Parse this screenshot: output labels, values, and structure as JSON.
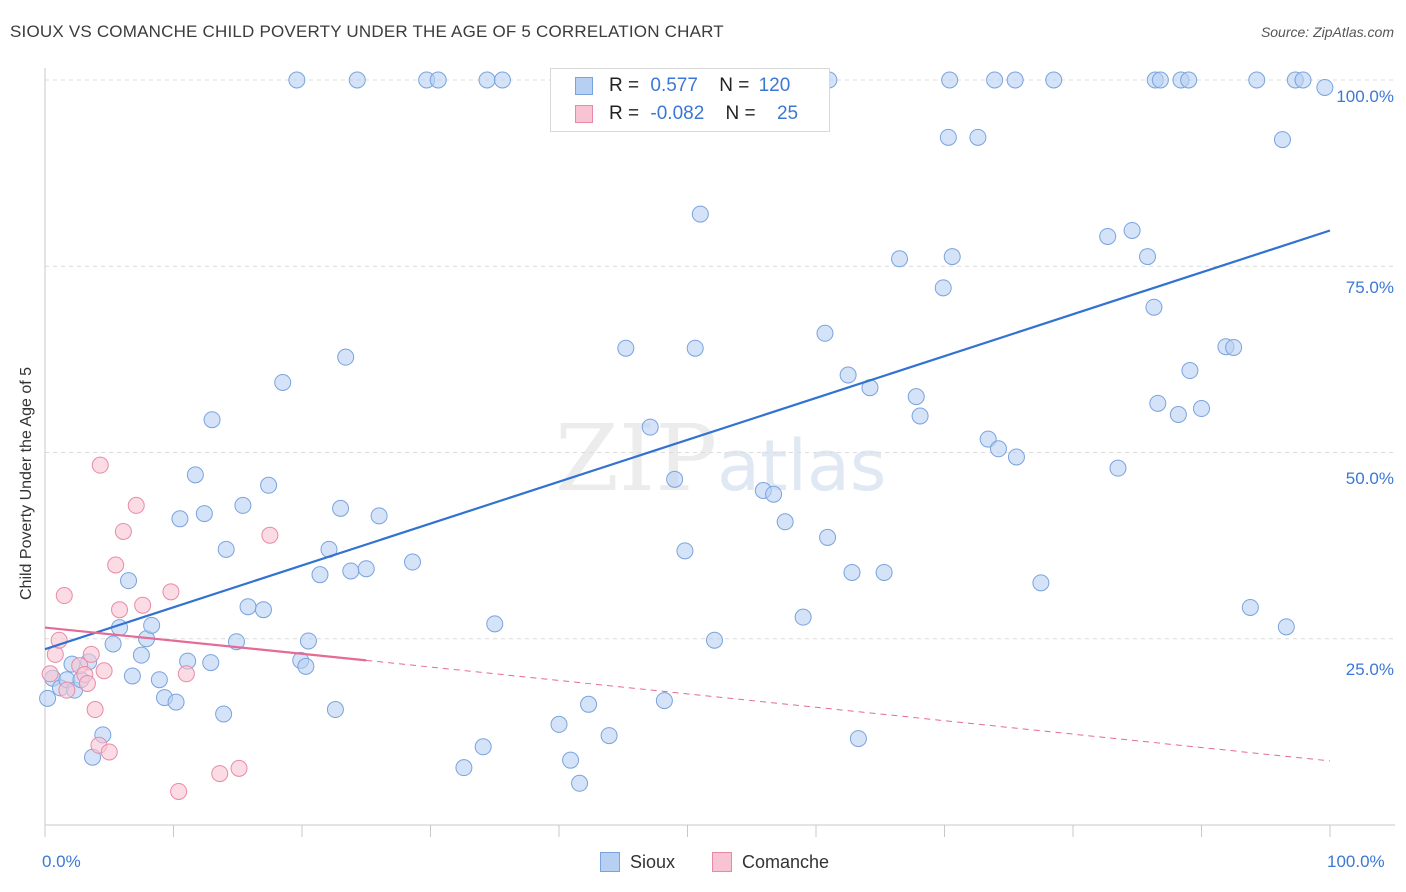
{
  "title": "SIOUX VS COMANCHE CHILD POVERTY UNDER THE AGE OF 5 CORRELATION CHART",
  "source": "Source: ZipAtlas.com",
  "watermark": {
    "zip": "ZIP",
    "atlas": "atlas"
  },
  "legend": {
    "rows": [
      {
        "r_label": "R =",
        "r_value": "0.577",
        "n_label": "N =",
        "n_value": "120",
        "color": "#b7d0f2",
        "border": "#7aa3de"
      },
      {
        "r_label": "R =",
        "r_value": "-0.082",
        "n_label": "N =",
        "n_value": "25",
        "color": "#f8c4d3",
        "border": "#e88aa6"
      }
    ]
  },
  "bottom_legend": [
    {
      "label": "Sioux",
      "color": "#b7d0f2",
      "border": "#7aa3de"
    },
    {
      "label": "Comanche",
      "color": "#f8c4d3",
      "border": "#e88aa6"
    }
  ],
  "chart_data": {
    "type": "scatter",
    "title": "SIOUX VS COMANCHE CHILD POVERTY UNDER THE AGE OF 5 CORRELATION CHART",
    "xlabel": "",
    "ylabel": "Child Poverty Under the Age of 5",
    "xlim": [
      0,
      100
    ],
    "ylim": [
      0,
      100
    ],
    "x_tick_labels": [
      "0.0%",
      "100.0%"
    ],
    "y_tick_labels": [
      {
        "value": 25,
        "label": "25.0%"
      },
      {
        "value": 50,
        "label": "50.0%"
      },
      {
        "value": 75,
        "label": "75.0%"
      },
      {
        "value": 100,
        "label": "100.0%"
      }
    ],
    "grid": true,
    "series": [
      {
        "name": "Sioux",
        "color": "#7aa3de",
        "fill": "#b7d0f2",
        "trend": {
          "x": [
            0,
            100
          ],
          "y": [
            23.6,
            79.8
          ],
          "style": "solid"
        },
        "points": [
          [
            0.2,
            17.0
          ],
          [
            0.6,
            19.7
          ],
          [
            1.2,
            18.4
          ],
          [
            1.7,
            19.5
          ],
          [
            2.1,
            21.6
          ],
          [
            2.3,
            18.1
          ],
          [
            2.8,
            19.5
          ],
          [
            3.4,
            21.9
          ],
          [
            3.7,
            9.1
          ],
          [
            4.5,
            12.1
          ],
          [
            5.3,
            24.3
          ],
          [
            5.8,
            26.5
          ],
          [
            6.5,
            32.8
          ],
          [
            6.8,
            20.0
          ],
          [
            7.5,
            22.8
          ],
          [
            7.9,
            25.0
          ],
          [
            8.3,
            26.8
          ],
          [
            8.9,
            19.5
          ],
          [
            9.3,
            17.1
          ],
          [
            10.2,
            16.5
          ],
          [
            10.5,
            41.1
          ],
          [
            11.1,
            22.0
          ],
          [
            11.7,
            47.0
          ],
          [
            12.4,
            41.8
          ],
          [
            12.9,
            21.8
          ],
          [
            13.0,
            54.4
          ],
          [
            13.9,
            14.9
          ],
          [
            14.1,
            37.0
          ],
          [
            14.9,
            24.6
          ],
          [
            15.4,
            42.9
          ],
          [
            15.8,
            29.3
          ],
          [
            17.0,
            28.9
          ],
          [
            17.4,
            45.6
          ],
          [
            18.5,
            59.4
          ],
          [
            19.9,
            22.1
          ],
          [
            20.3,
            21.3
          ],
          [
            20.5,
            24.7
          ],
          [
            21.4,
            33.6
          ],
          [
            22.1,
            37.0
          ],
          [
            22.6,
            15.5
          ],
          [
            23.0,
            42.5
          ],
          [
            23.4,
            62.8
          ],
          [
            23.8,
            34.1
          ],
          [
            25.0,
            34.4
          ],
          [
            26.0,
            41.5
          ],
          [
            28.6,
            35.3
          ],
          [
            32.6,
            7.7
          ],
          [
            34.1,
            10.5
          ],
          [
            35.0,
            27.0
          ],
          [
            40.0,
            13.5
          ],
          [
            40.9,
            8.7
          ],
          [
            41.6,
            5.6
          ],
          [
            42.3,
            16.2
          ],
          [
            43.9,
            12.0
          ],
          [
            45.2,
            64.0
          ],
          [
            47.1,
            53.4
          ],
          [
            48.2,
            16.7
          ],
          [
            49.0,
            46.4
          ],
          [
            49.8,
            36.8
          ],
          [
            50.6,
            64.0
          ],
          [
            51.0,
            82.0
          ],
          [
            52.1,
            24.8
          ],
          [
            55.9,
            44.9
          ],
          [
            56.7,
            44.4
          ],
          [
            57.6,
            40.7
          ],
          [
            59.0,
            27.9
          ],
          [
            60.7,
            66.0
          ],
          [
            60.9,
            38.6
          ],
          [
            62.5,
            60.4
          ],
          [
            62.8,
            33.9
          ],
          [
            63.3,
            11.6
          ],
          [
            64.2,
            58.7
          ],
          [
            65.3,
            33.9
          ],
          [
            66.5,
            76.0
          ],
          [
            67.8,
            57.5
          ],
          [
            68.1,
            54.9
          ],
          [
            69.9,
            72.1
          ],
          [
            70.3,
            92.3
          ],
          [
            70.6,
            76.3
          ],
          [
            72.6,
            92.3
          ],
          [
            73.4,
            51.8
          ],
          [
            74.2,
            50.5
          ],
          [
            75.6,
            49.4
          ],
          [
            77.5,
            32.5
          ],
          [
            83.5,
            47.9
          ],
          [
            82.7,
            79.0
          ],
          [
            84.6,
            79.8
          ],
          [
            85.8,
            76.3
          ],
          [
            86.3,
            69.5
          ],
          [
            86.6,
            56.6
          ],
          [
            88.2,
            55.1
          ],
          [
            89.1,
            61.0
          ],
          [
            90.0,
            55.9
          ],
          [
            91.9,
            64.2
          ],
          [
            92.5,
            64.1
          ],
          [
            93.8,
            29.2
          ],
          [
            96.3,
            92.0
          ],
          [
            96.6,
            26.6
          ],
          [
            97.3,
            100.0
          ],
          [
            97.9,
            100.0
          ],
          [
            99.6,
            99.0
          ],
          [
            86.4,
            100.0
          ],
          [
            86.8,
            100.0
          ],
          [
            88.4,
            100.0
          ],
          [
            89.0,
            100.0
          ],
          [
            78.5,
            100.0
          ],
          [
            73.9,
            100.0
          ],
          [
            70.4,
            100.0
          ],
          [
            75.5,
            100.0
          ],
          [
            94.3,
            100.0
          ],
          [
            61.0,
            100.0
          ],
          [
            57.9,
            100.0
          ],
          [
            19.6,
            100.0
          ],
          [
            24.3,
            100.0
          ],
          [
            29.7,
            100.0
          ],
          [
            30.6,
            100.0
          ],
          [
            34.4,
            100.0
          ],
          [
            35.6,
            100.0
          ],
          [
            44.8,
            100.0
          ],
          [
            55.4,
            100.0
          ]
        ]
      },
      {
        "name": "Comanche",
        "color": "#e88aa6",
        "fill": "#f8c4d3",
        "trend": {
          "x": [
            0,
            25,
            100
          ],
          "y": [
            26.5,
            22.1,
            8.6
          ],
          "style": "solid-then-dashed"
        },
        "points": [
          [
            0.4,
            20.3
          ],
          [
            0.8,
            22.9
          ],
          [
            1.1,
            24.8
          ],
          [
            1.5,
            30.8
          ],
          [
            1.7,
            18.1
          ],
          [
            2.7,
            21.4
          ],
          [
            3.1,
            20.2
          ],
          [
            3.3,
            19.0
          ],
          [
            3.6,
            22.9
          ],
          [
            3.9,
            15.5
          ],
          [
            4.2,
            10.7
          ],
          [
            4.3,
            48.3
          ],
          [
            4.6,
            20.7
          ],
          [
            5.0,
            9.8
          ],
          [
            5.5,
            34.9
          ],
          [
            5.8,
            28.9
          ],
          [
            6.1,
            39.4
          ],
          [
            7.1,
            42.9
          ],
          [
            7.6,
            29.5
          ],
          [
            9.8,
            31.3
          ],
          [
            10.4,
            4.5
          ],
          [
            11.0,
            20.3
          ],
          [
            13.6,
            6.9
          ],
          [
            15.1,
            7.6
          ],
          [
            17.5,
            38.9
          ]
        ]
      }
    ]
  }
}
